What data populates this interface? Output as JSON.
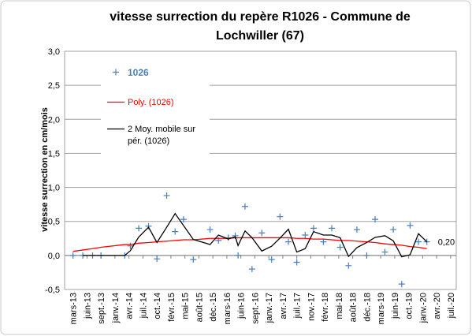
{
  "chart_data": {
    "type": "scatter",
    "title": "vitesse surrection du repère R1026 - Commune de Lochwiller (67)",
    "y_label": "vitesse surrection en cm/mois",
    "annotation": "0,20",
    "categories": [
      "mars-13",
      "juin-13",
      "sept.-13",
      "janv.-14",
      "avr.-14",
      "juil.-14",
      "oct.-14",
      "févr.-15",
      "mai-15",
      "août-15",
      "déc.-15",
      "mars-16",
      "juin-16",
      "sept.-16",
      "janv.-17",
      "avr.-17",
      "juil.-17",
      "nov.-17",
      "févr.-18",
      "mai-18",
      "août-18",
      "déc.-18",
      "mars-19",
      "juin-19",
      "oct.-19",
      "janv.-20",
      "avr.-20",
      "juil.-20"
    ],
    "xlim": [
      -0.6,
      27.4
    ],
    "ylim": [
      -0.5,
      3.0
    ],
    "yticks": [
      {
        "value": -0.5,
        "label": "-0,5"
      },
      {
        "value": 0,
        "label": "0,0"
      },
      {
        "value": 0.5,
        "label": "0,5"
      },
      {
        "value": 1,
        "label": "1,0"
      },
      {
        "value": 1.5,
        "label": "1,5"
      },
      {
        "value": 2,
        "label": "2,0"
      },
      {
        "value": 2.5,
        "label": "2,5"
      },
      {
        "value": 3,
        "label": "3,0"
      }
    ],
    "grid": true,
    "series": [
      {
        "name": "1026",
        "color": "#4a7ebb",
        "kind": "marker",
        "x": [
          0,
          0.7,
          1.4,
          2.0,
          3.7,
          4.1,
          4.7,
          5.4,
          6.0,
          6.7,
          7.3,
          7.9,
          8.6,
          9.8,
          10.4,
          11.1,
          11.6,
          11.8,
          12.3,
          12.8,
          13.5,
          14.2,
          14.8,
          15.4,
          16.0,
          16.6,
          17.2,
          17.9,
          18.5,
          19.1,
          19.7,
          20.3,
          21.0,
          21.6,
          22.3,
          22.9,
          23.5,
          24.1,
          24.7,
          25.3
        ],
        "values": [
          0,
          0,
          0,
          0,
          0,
          0.14,
          0.4,
          0.43,
          -0.05,
          0.88,
          0.35,
          0.53,
          -0.06,
          0.38,
          0.22,
          0.26,
          0.29,
          0,
          0.72,
          -0.2,
          0.33,
          -0.06,
          0.57,
          0.2,
          -0.1,
          0.3,
          0.4,
          0.2,
          0.4,
          0.12,
          -0.15,
          0.38,
          0,
          0.53,
          0.05,
          0.38,
          -0.42,
          0.44,
          0.2,
          0.2
        ]
      },
      {
        "name": "Poly. (1026)",
        "color": "#ff0000",
        "kind": "line",
        "x": [
          0,
          0.7,
          1.4,
          2.0,
          3.7,
          4.1,
          4.7,
          5.4,
          6.0,
          6.7,
          7.3,
          7.9,
          8.6,
          9.8,
          10.4,
          11.1,
          11.6,
          11.8,
          12.3,
          12.8,
          13.5,
          14.2,
          14.8,
          15.4,
          16.0,
          16.6,
          17.2,
          17.9,
          18.5,
          19.1,
          19.7,
          20.3,
          21.0,
          21.6,
          22.3,
          22.9,
          23.5,
          24.1,
          24.7,
          25.3
        ],
        "values": [
          0.06,
          0.08,
          0.1,
          0.12,
          0.16,
          0.16,
          0.18,
          0.19,
          0.2,
          0.21,
          0.22,
          0.23,
          0.23,
          0.25,
          0.25,
          0.25,
          0.26,
          0.26,
          0.26,
          0.26,
          0.26,
          0.26,
          0.26,
          0.26,
          0.25,
          0.25,
          0.24,
          0.24,
          0.23,
          0.22,
          0.22,
          0.21,
          0.2,
          0.19,
          0.17,
          0.16,
          0.15,
          0.13,
          0.12,
          0.1
        ]
      },
      {
        "name": "2 Moy. mobile sur pér. (1026)",
        "color": "#000000",
        "kind": "line",
        "x": [
          0,
          0.7,
          1.4,
          2.0,
          3.7,
          4.1,
          4.7,
          5.4,
          6.0,
          6.7,
          7.3,
          7.9,
          8.6,
          9.8,
          10.4,
          11.1,
          11.6,
          11.8,
          12.3,
          12.8,
          13.5,
          14.2,
          14.8,
          15.4,
          16.0,
          16.6,
          17.2,
          17.9,
          18.5,
          19.1,
          19.7,
          20.3,
          21.0,
          21.6,
          22.3,
          22.9,
          23.5,
          24.1,
          24.7,
          25.3
        ],
        "values": [
          null,
          0,
          0,
          0,
          0,
          0.07,
          0.27,
          0.415,
          0.19,
          0.415,
          0.615,
          0.44,
          0.235,
          0.16,
          0.3,
          0.24,
          0.275,
          0.145,
          0.36,
          0.26,
          0.065,
          0.135,
          0.255,
          0.385,
          0.05,
          0.1,
          0.35,
          0.3,
          0.3,
          0.26,
          -0.015,
          0.115,
          0.19,
          0.265,
          0.29,
          0.215,
          -0.02,
          0.01,
          0.32,
          0.2
        ]
      }
    ]
  }
}
